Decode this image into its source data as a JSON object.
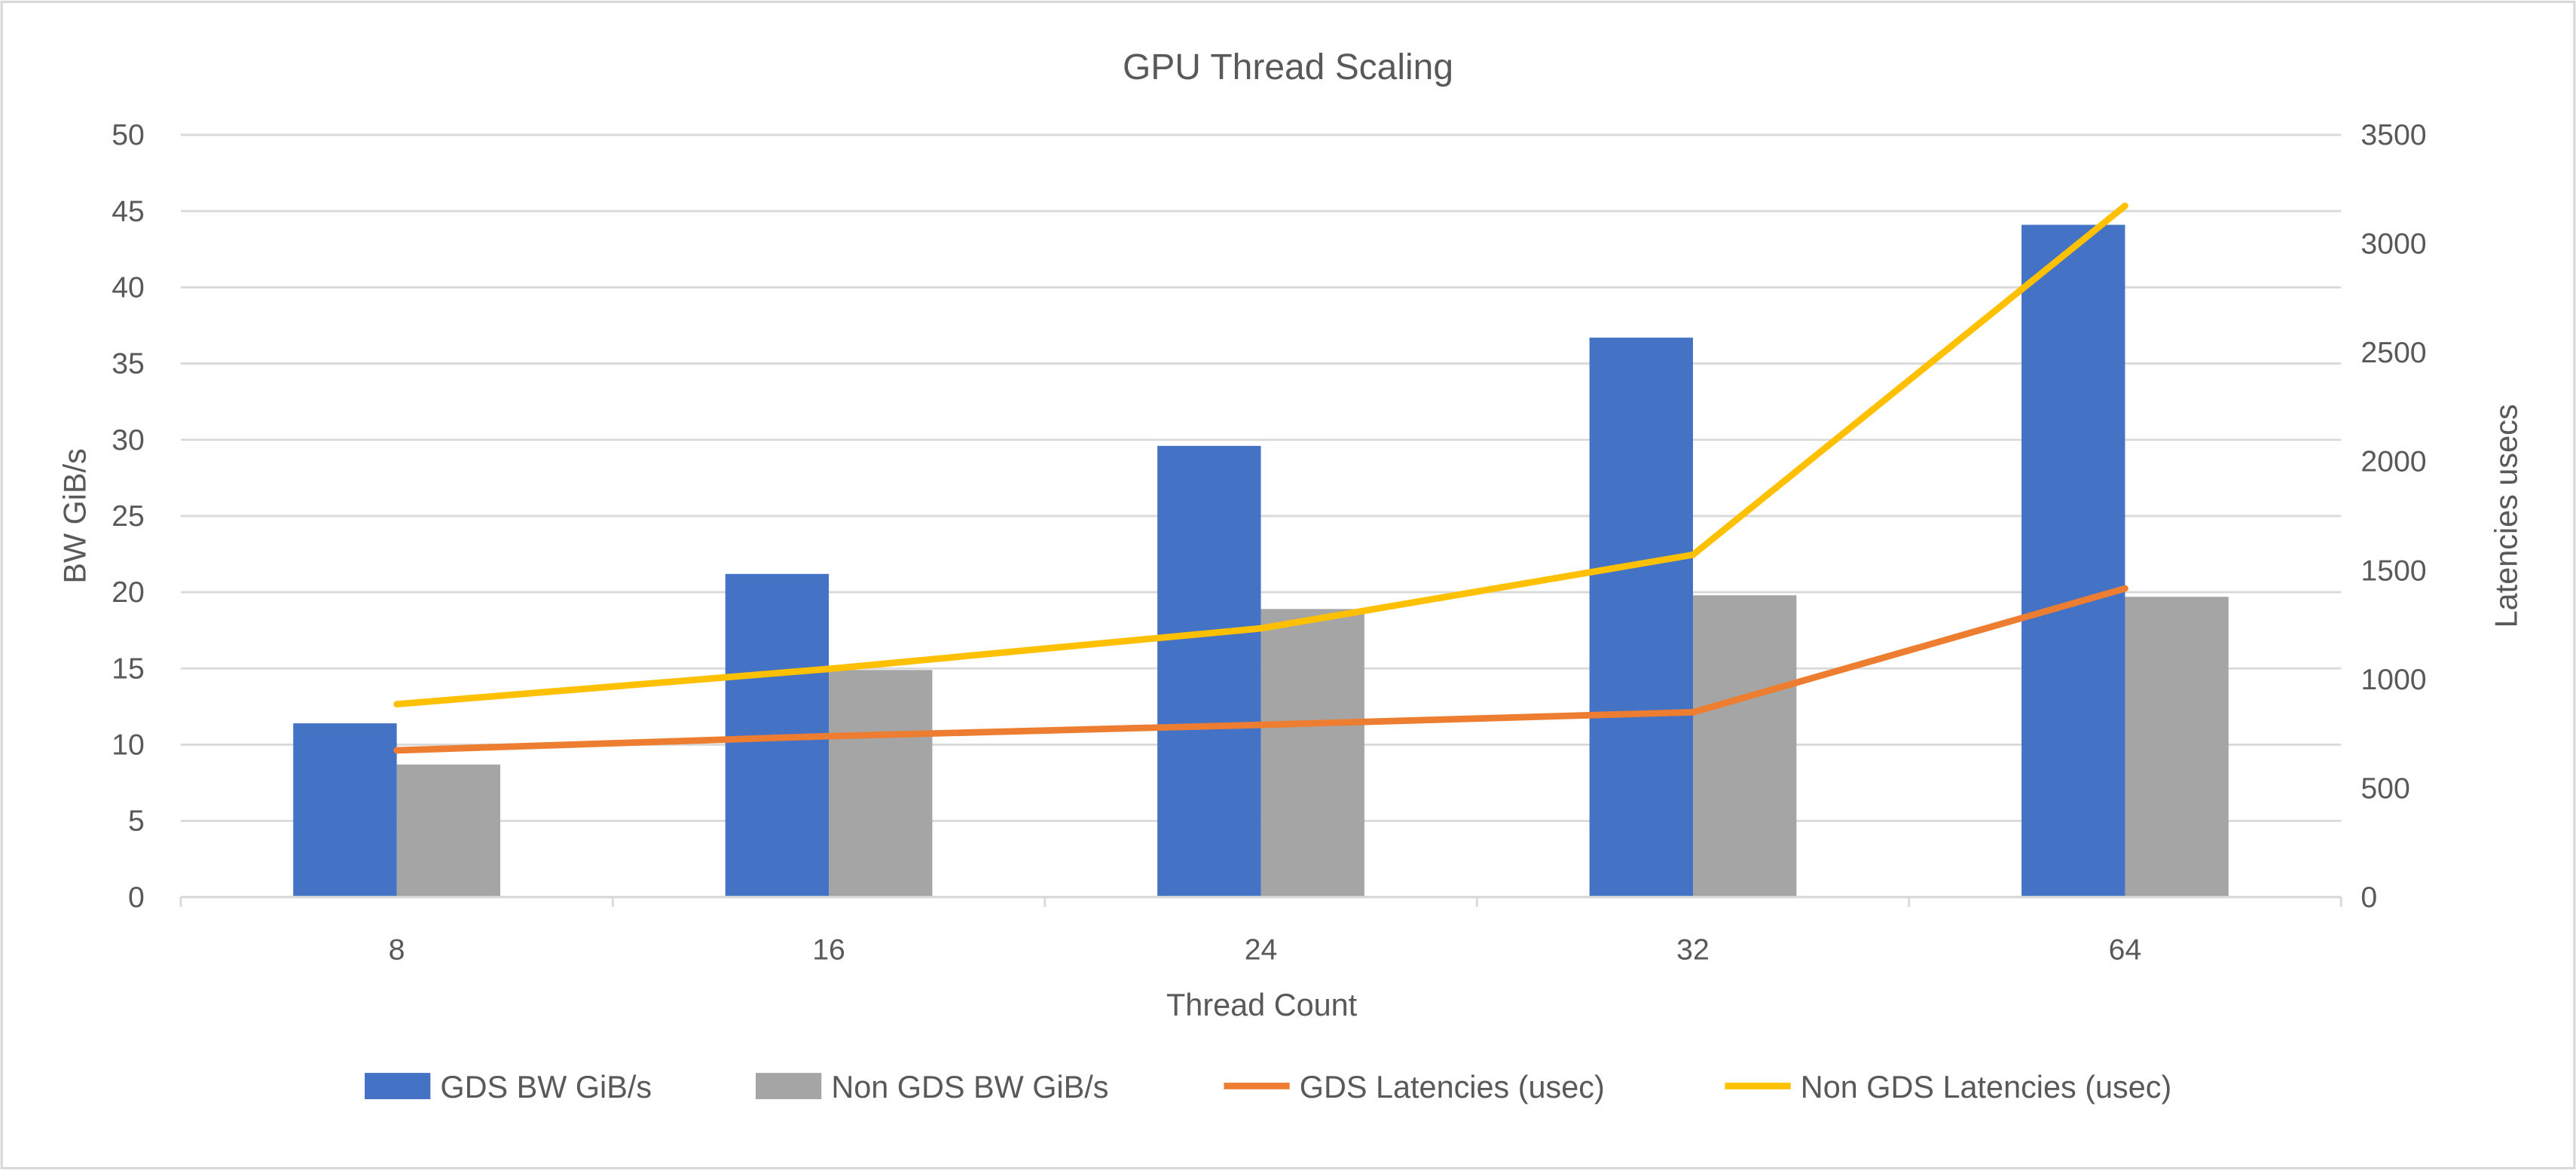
{
  "chart_data": {
    "type": "bar",
    "title": "GPU Thread Scaling",
    "xlabel": "Thread Count",
    "ylabel": "BW GiB/s",
    "y2label": "Latencies usecs",
    "categories": [
      "8",
      "16",
      "24",
      "32",
      "64"
    ],
    "ylim": [
      0,
      50
    ],
    "yticks": [
      0,
      5,
      10,
      15,
      20,
      25,
      30,
      35,
      40,
      45,
      50
    ],
    "y2lim": [
      0,
      3500
    ],
    "y2ticks": [
      0,
      500,
      1000,
      1500,
      2000,
      2500,
      3000,
      3500
    ],
    "grid": true,
    "legend_position": "bottom",
    "series": [
      {
        "name": "GDS BW GiB/s",
        "type": "bar",
        "axis": "left",
        "color": "#4472C4",
        "values": [
          11.4,
          21.2,
          29.6,
          36.7,
          44.1
        ]
      },
      {
        "name": "Non GDS BW GiB/s",
        "type": "bar",
        "axis": "left",
        "color": "#A5A5A5",
        "values": [
          8.7,
          14.9,
          18.9,
          19.8,
          19.7
        ]
      },
      {
        "name": "GDS Latencies (usec)",
        "type": "line",
        "axis": "right",
        "color": "#ED7D31",
        "values": [
          674,
          739,
          791,
          849,
          1417
        ]
      },
      {
        "name": "Non GDS Latencies (usec)",
        "type": "line",
        "axis": "right",
        "color": "#FFC000",
        "values": [
          886,
          1048,
          1234,
          1572,
          3174
        ]
      }
    ]
  }
}
